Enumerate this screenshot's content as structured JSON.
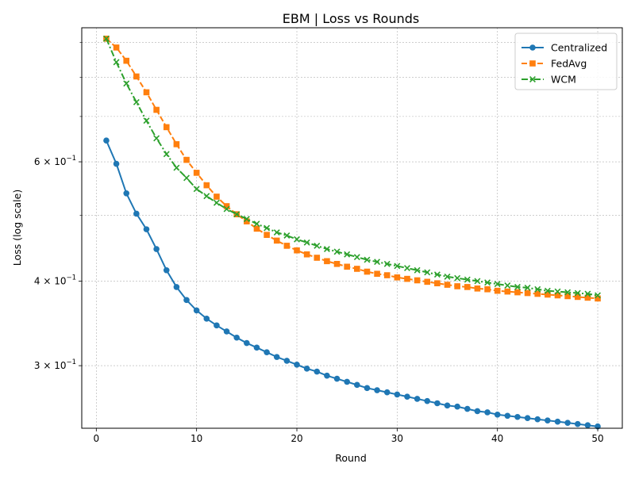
{
  "chart_data": {
    "type": "line",
    "title": "EBM | Loss vs Rounds",
    "xlabel": "Round",
    "ylabel": "Loss (log scale)",
    "yscale": "log",
    "xlim": [
      -1.45,
      52.45
    ],
    "ylim": [
      0.2425,
      0.9465
    ],
    "x_ticks": [
      0,
      10,
      20,
      30,
      40,
      50
    ],
    "x_tick_labels": [
      "0",
      "10",
      "20",
      "30",
      "40",
      "50"
    ],
    "y_major_ticks": [
      0.3,
      0.4,
      0.6
    ],
    "y_major_tick_labels": [
      {
        "base": "3 × 10",
        "exp": "−1"
      },
      {
        "base": "4 × 10",
        "exp": "−1"
      },
      {
        "base": "6 × 10",
        "exp": "−1"
      }
    ],
    "y_minor_ticks": [
      0.5,
      0.7,
      0.8,
      0.9
    ],
    "grid": true,
    "legend_position": "top-right",
    "x": [
      1,
      2,
      3,
      4,
      5,
      6,
      7,
      8,
      9,
      10,
      11,
      12,
      13,
      14,
      15,
      16,
      17,
      18,
      19,
      20,
      21,
      22,
      23,
      24,
      25,
      26,
      27,
      28,
      29,
      30,
      31,
      32,
      33,
      34,
      35,
      36,
      37,
      38,
      39,
      40,
      41,
      42,
      43,
      44,
      45,
      46,
      47,
      48,
      49,
      50
    ],
    "series": [
      {
        "name": "Centralized",
        "color": "#1f77b4",
        "marker": "circle",
        "linestyle": "solid",
        "values": [
          0.645,
          0.596,
          0.539,
          0.503,
          0.477,
          0.446,
          0.415,
          0.392,
          0.375,
          0.362,
          0.352,
          0.344,
          0.337,
          0.33,
          0.324,
          0.319,
          0.314,
          0.309,
          0.305,
          0.301,
          0.297,
          0.294,
          0.29,
          0.287,
          0.284,
          0.281,
          0.278,
          0.276,
          0.274,
          0.272,
          0.27,
          0.268,
          0.266,
          0.264,
          0.262,
          0.261,
          0.259,
          0.257,
          0.256,
          0.254,
          0.253,
          0.252,
          0.251,
          0.25,
          0.249,
          0.248,
          0.247,
          0.246,
          0.245,
          0.244
        ]
      },
      {
        "name": "FedAvg",
        "color": "#ff7f0e",
        "marker": "square",
        "linestyle": "dashed",
        "values": [
          0.912,
          0.885,
          0.846,
          0.802,
          0.76,
          0.716,
          0.675,
          0.637,
          0.604,
          0.578,
          0.554,
          0.533,
          0.516,
          0.502,
          0.49,
          0.478,
          0.468,
          0.459,
          0.451,
          0.444,
          0.438,
          0.433,
          0.428,
          0.424,
          0.42,
          0.417,
          0.413,
          0.41,
          0.408,
          0.405,
          0.403,
          0.401,
          0.399,
          0.397,
          0.395,
          0.393,
          0.392,
          0.39,
          0.389,
          0.387,
          0.386,
          0.385,
          0.384,
          0.383,
          0.382,
          0.381,
          0.38,
          0.379,
          0.378,
          0.377
        ]
      },
      {
        "name": "WCM",
        "color": "#2ca02c",
        "marker": "x",
        "linestyle": "dashdot",
        "values": [
          0.912,
          0.842,
          0.783,
          0.735,
          0.69,
          0.65,
          0.616,
          0.588,
          0.568,
          0.547,
          0.534,
          0.522,
          0.511,
          0.502,
          0.494,
          0.486,
          0.479,
          0.472,
          0.467,
          0.461,
          0.456,
          0.451,
          0.446,
          0.442,
          0.438,
          0.434,
          0.43,
          0.427,
          0.424,
          0.421,
          0.418,
          0.415,
          0.412,
          0.409,
          0.406,
          0.404,
          0.402,
          0.4,
          0.398,
          0.396,
          0.394,
          0.392,
          0.391,
          0.389,
          0.387,
          0.386,
          0.385,
          0.384,
          0.383,
          0.381
        ]
      }
    ]
  }
}
